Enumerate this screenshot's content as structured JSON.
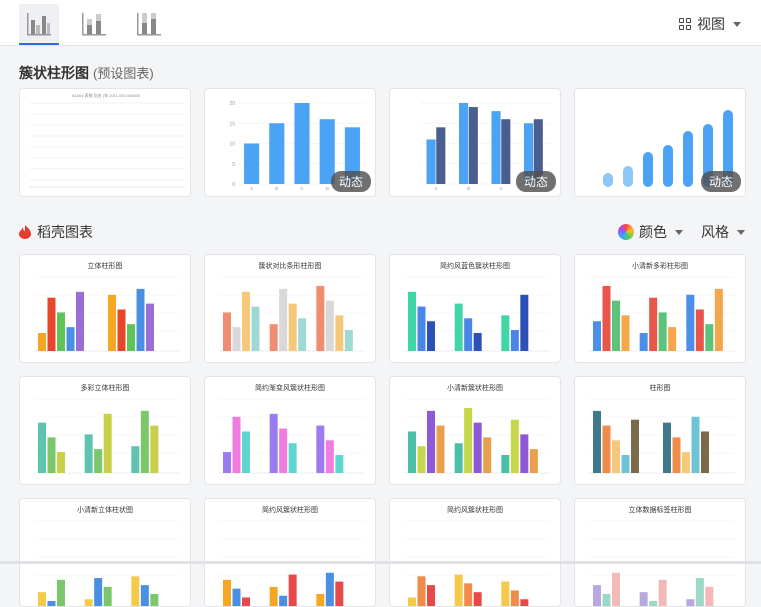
{
  "toolbar": {
    "view_label": "视图"
  },
  "preset": {
    "title": "簇状柱形图",
    "subtitle": "(预设图表)",
    "cards": [
      {
        "badge": ""
      },
      {
        "badge": "动态"
      },
      {
        "badge": "动态"
      },
      {
        "badge": "动态"
      }
    ],
    "card1_title": "A1004 表格 别名 (年 2011,000,004000"
  },
  "daoke": {
    "title": "稻壳图表",
    "color_label": "颜色",
    "style_label": "风格"
  },
  "templates": [
    {
      "title": "立体柱形图"
    },
    {
      "title": "簇状对比条形柱形图"
    },
    {
      "title": "简约风蓝色簇状柱形图"
    },
    {
      "title": "小清新多彩柱形图"
    },
    {
      "title": "多彩立体柱形图"
    },
    {
      "title": "简约渐变风簇状柱形图"
    },
    {
      "title": "小清新簇状柱形图"
    },
    {
      "title": "柱形图"
    },
    {
      "title": "小清新立体柱状图"
    },
    {
      "title": "简约风簇状柱形图"
    },
    {
      "title": "简约风簇状柱形图"
    },
    {
      "title": "立体数据标签柱形图"
    }
  ],
  "chart_data": [
    {
      "type": "bar",
      "categories": [
        "A",
        "B",
        "C",
        "D",
        "E"
      ],
      "values": [
        10,
        15,
        20,
        16,
        14
      ],
      "ylim": [
        0,
        20
      ]
    },
    {
      "type": "bar",
      "categories": [
        "A",
        "B",
        "C",
        "D"
      ],
      "series": [
        {
          "values": [
            11,
            20,
            18,
            15
          ]
        },
        {
          "values": [
            14,
            19,
            16,
            16
          ]
        }
      ]
    },
    {
      "type": "bar",
      "values": [
        2,
        3,
        5,
        6,
        8,
        9,
        11
      ]
    }
  ],
  "colors": {
    "accent": "#2b6fd8",
    "bar_blue": "#4ba3f5",
    "bar_light": "#8ec8f7",
    "bar_dark": "#4a5f8f"
  }
}
